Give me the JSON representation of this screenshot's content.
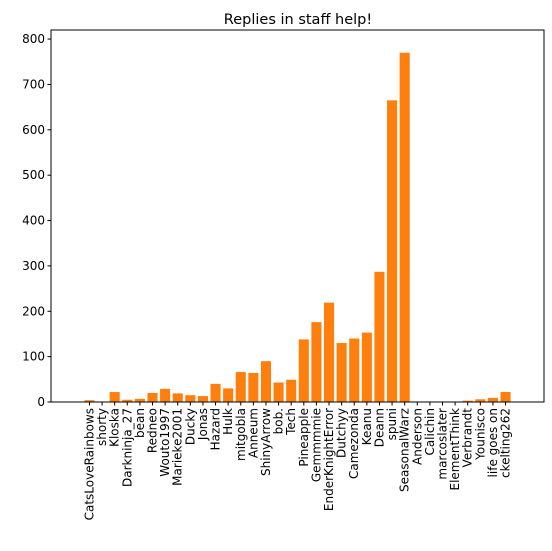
{
  "chart_data": {
    "type": "bar",
    "title": "Replies in staff help!",
    "xlabel": "",
    "ylabel": "",
    "ylim": [
      0,
      820
    ],
    "yticks": [
      0,
      100,
      200,
      300,
      400,
      500,
      600,
      700,
      800
    ],
    "bar_color": "#ff7f0e",
    "grid": false,
    "categories": [
      "CatsLoveRainbows",
      "shorty",
      "Kloska",
      "Darkninja_27",
      "bean",
      "Redneo",
      "Wouto1997",
      "Marieke2001",
      "Ducky",
      "Jonas",
      "Hazard",
      "Hulk",
      "mitgobla",
      "Anneum",
      "ShinyArrow",
      "bob.",
      "Tech",
      "Pineapple",
      "Gemmmmie",
      "EnderKnightError",
      "Dutchyy",
      "Camezonda",
      "Keanu",
      "Deann",
      "spuni",
      "SeasonalWarz",
      "Anderson",
      "Calichin",
      "marcoslater",
      "ElementThink",
      "Verbrandt",
      "Younisco",
      "life goes on",
      "ckelting262"
    ],
    "values": [
      4,
      0,
      22,
      5,
      7,
      20,
      29,
      19,
      15,
      13,
      40,
      30,
      66,
      64,
      90,
      43,
      49,
      138,
      176,
      219,
      130,
      140,
      153,
      287,
      665,
      770,
      1,
      1,
      1,
      1,
      3,
      6,
      9,
      22
    ]
  }
}
